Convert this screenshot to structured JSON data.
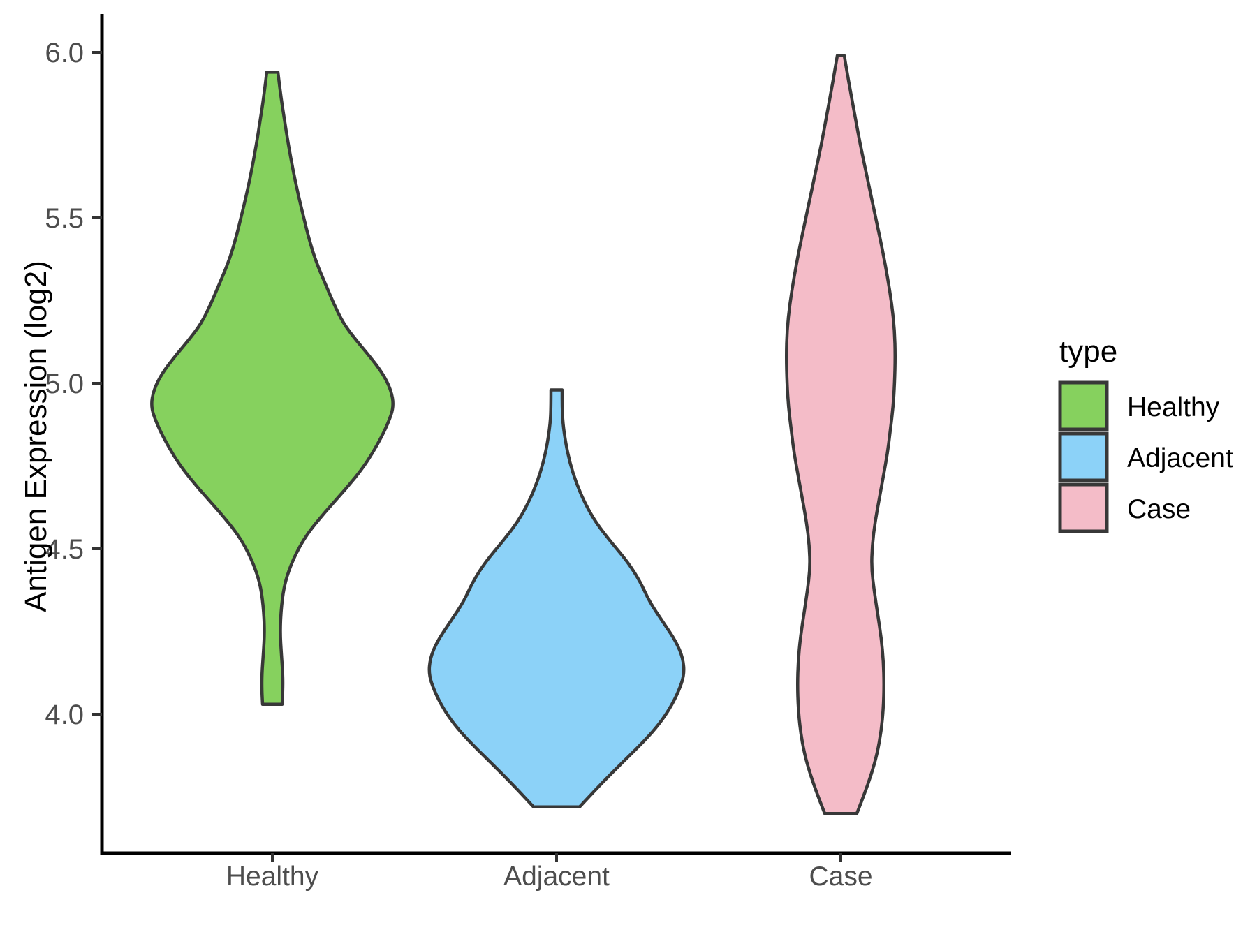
{
  "chart_data": {
    "type": "violin",
    "title": "",
    "xlabel": "",
    "ylabel": "Antigen Expression (log2)",
    "categories": [
      "Healthy",
      "Adjacent",
      "Case"
    ],
    "y_ticks": [
      4.0,
      4.5,
      5.0,
      5.5,
      6.0
    ],
    "y_tick_labels": [
      "4.0",
      "4.5",
      "5.0",
      "5.5",
      "6.0"
    ],
    "ylim": [
      3.57,
      6.13
    ],
    "grid": false,
    "legend_position": "right",
    "legend_title": "type",
    "series": [
      {
        "name": "Healthy",
        "color": "#86D15E",
        "min": 4.03,
        "max": 5.94,
        "peak_at": 4.93,
        "density": [
          [
            4.03,
            14
          ],
          [
            4.07,
            15
          ],
          [
            4.12,
            15
          ],
          [
            4.18,
            13
          ],
          [
            4.25,
            11
          ],
          [
            4.33,
            13
          ],
          [
            4.4,
            18
          ],
          [
            4.47,
            30
          ],
          [
            4.54,
            48
          ],
          [
            4.61,
            75
          ],
          [
            4.68,
            105
          ],
          [
            4.75,
            132
          ],
          [
            4.82,
            152
          ],
          [
            4.88,
            166
          ],
          [
            4.93,
            174
          ],
          [
            4.98,
            170
          ],
          [
            5.03,
            158
          ],
          [
            5.08,
            140
          ],
          [
            5.13,
            120
          ],
          [
            5.18,
            102
          ],
          [
            5.24,
            88
          ],
          [
            5.3,
            76
          ],
          [
            5.37,
            62
          ],
          [
            5.44,
            52
          ],
          [
            5.5,
            45
          ],
          [
            5.57,
            37
          ],
          [
            5.64,
            30
          ],
          [
            5.72,
            23
          ],
          [
            5.8,
            17
          ],
          [
            5.87,
            12
          ],
          [
            5.94,
            8
          ]
        ]
      },
      {
        "name": "Adjacent",
        "color": "#8CD2F8",
        "min": 3.72,
        "max": 4.98,
        "peak_at": 4.12,
        "density": [
          [
            3.72,
            33
          ],
          [
            3.77,
            55
          ],
          [
            3.82,
            78
          ],
          [
            3.87,
            102
          ],
          [
            3.92,
            126
          ],
          [
            3.97,
            147
          ],
          [
            4.02,
            163
          ],
          [
            4.07,
            175
          ],
          [
            4.12,
            183
          ],
          [
            4.17,
            181
          ],
          [
            4.22,
            171
          ],
          [
            4.28,
            152
          ],
          [
            4.34,
            133
          ],
          [
            4.4,
            120
          ],
          [
            4.46,
            102
          ],
          [
            4.52,
            78
          ],
          [
            4.58,
            56
          ],
          [
            4.64,
            40
          ],
          [
            4.7,
            28
          ],
          [
            4.76,
            19
          ],
          [
            4.82,
            13
          ],
          [
            4.88,
            9
          ],
          [
            4.93,
            8
          ],
          [
            4.98,
            8
          ]
        ]
      },
      {
        "name": "Case",
        "color": "#F4BCC8",
        "min": 3.7,
        "max": 5.99,
        "peak_at": 5.08,
        "density": [
          [
            3.7,
            23
          ],
          [
            3.76,
            34
          ],
          [
            3.82,
            44
          ],
          [
            3.88,
            52
          ],
          [
            3.95,
            58
          ],
          [
            4.02,
            61
          ],
          [
            4.09,
            62
          ],
          [
            4.16,
            61
          ],
          [
            4.23,
            58
          ],
          [
            4.3,
            53
          ],
          [
            4.37,
            48
          ],
          [
            4.44,
            44
          ],
          [
            4.51,
            45
          ],
          [
            4.58,
            49
          ],
          [
            4.65,
            55
          ],
          [
            4.72,
            61
          ],
          [
            4.79,
            67
          ],
          [
            4.86,
            71
          ],
          [
            4.93,
            75
          ],
          [
            5.0,
            77
          ],
          [
            5.08,
            78
          ],
          [
            5.16,
            77
          ],
          [
            5.24,
            73
          ],
          [
            5.32,
            67
          ],
          [
            5.4,
            60
          ],
          [
            5.48,
            52
          ],
          [
            5.56,
            44
          ],
          [
            5.64,
            36
          ],
          [
            5.72,
            28
          ],
          [
            5.8,
            21
          ],
          [
            5.88,
            14
          ],
          [
            5.94,
            9
          ],
          [
            5.99,
            5
          ]
        ]
      }
    ]
  },
  "legend": {
    "title": "type",
    "entries": [
      {
        "label": "Healthy",
        "color": "#86D15E"
      },
      {
        "label": "Adjacent",
        "color": "#8CD2F8"
      },
      {
        "label": "Case",
        "color": "#F4BCC8"
      }
    ]
  },
  "colors": {
    "outline": "#383838",
    "axis_line": "#000000",
    "tick_mark": "#333333",
    "tick_text": "#4D4D4D",
    "title_text": "#000000",
    "background": "#FFFFFF"
  }
}
